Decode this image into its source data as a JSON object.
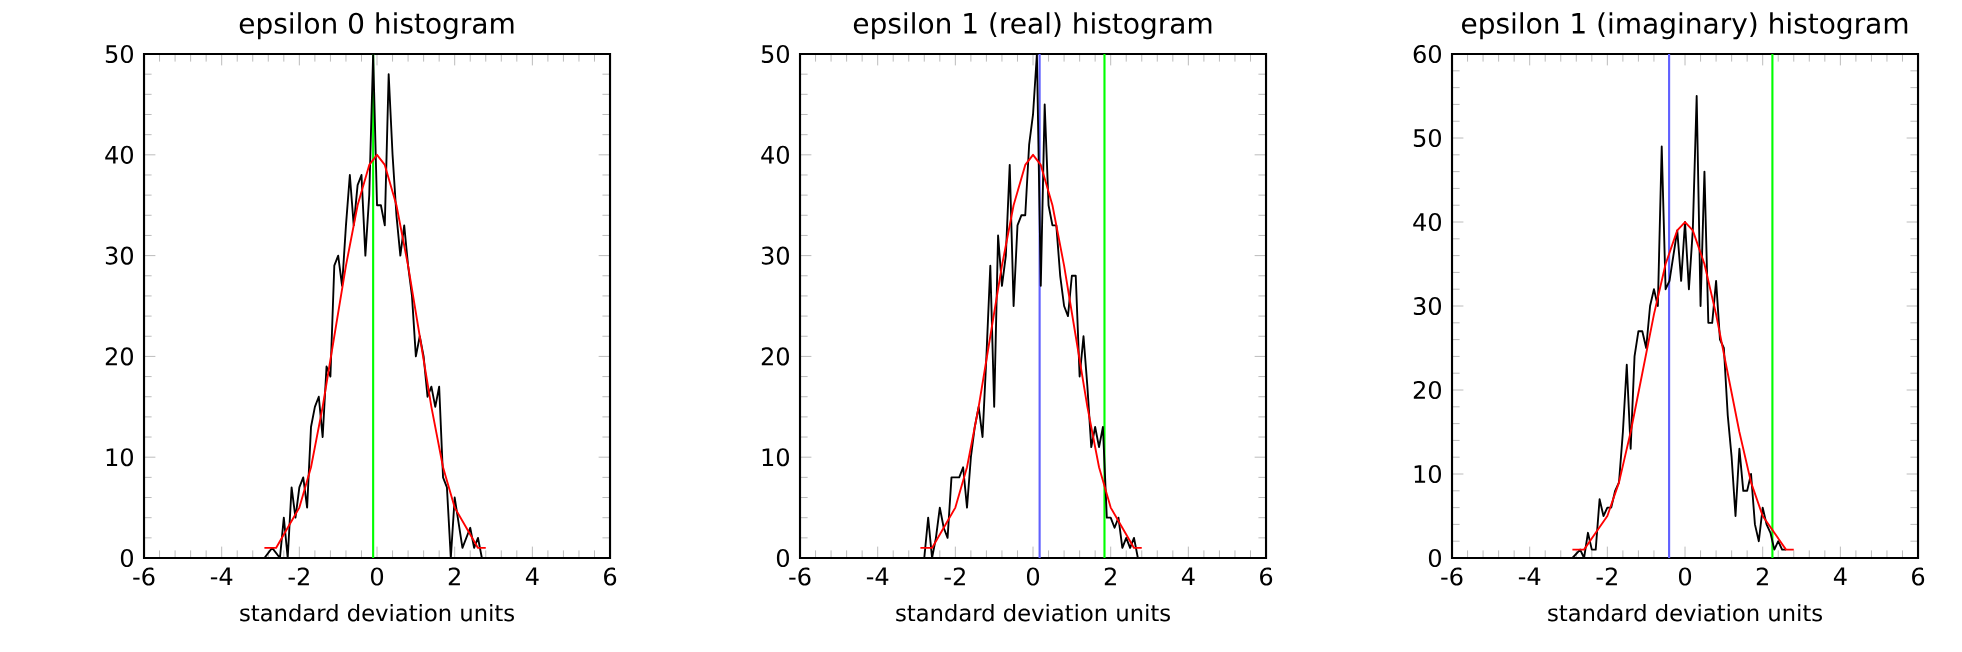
{
  "chart_data": [
    {
      "type": "line",
      "title": "epsilon 0 histogram",
      "xlabel": "standard deviation units",
      "xlim": [
        -6,
        6
      ],
      "ylim": [
        0,
        50
      ],
      "xticks": [
        -6,
        -4,
        -2,
        0,
        2,
        4,
        6
      ],
      "yticks": [
        0,
        10,
        20,
        30,
        40,
        50
      ],
      "series": [
        {
          "color": "#000000",
          "x": [
            -2.9,
            -2.7,
            -2.5,
            -2.4,
            -2.3,
            -2.2,
            -2.1,
            -2.0,
            -1.9,
            -1.8,
            -1.7,
            -1.6,
            -1.5,
            -1.4,
            -1.3,
            -1.2,
            -1.1,
            -1.0,
            -0.9,
            -0.8,
            -0.7,
            -0.6,
            -0.5,
            -0.4,
            -0.3,
            -0.2,
            -0.1,
            0.0,
            0.1,
            0.2,
            0.3,
            0.4,
            0.5,
            0.6,
            0.7,
            0.8,
            0.9,
            1.0,
            1.1,
            1.2,
            1.3,
            1.4,
            1.5,
            1.6,
            1.7,
            1.8,
            1.9,
            2.0,
            2.2,
            2.4,
            2.5,
            2.6,
            2.7
          ],
          "values": [
            0,
            1,
            0,
            4,
            0,
            7,
            4,
            7,
            8,
            5,
            13,
            15,
            16,
            12,
            19,
            18,
            29,
            30,
            27,
            33,
            38,
            33,
            37,
            38,
            30,
            36,
            50,
            35,
            35,
            33,
            48,
            40,
            34,
            30,
            33,
            29,
            26,
            20,
            22,
            20,
            16,
            17,
            15,
            17,
            8,
            7,
            0,
            6,
            1,
            3,
            1,
            2,
            0
          ]
        },
        {
          "color": "#ff0000",
          "x": [
            -2.9,
            -2.6,
            -2.3,
            -2.0,
            -1.7,
            -1.4,
            -1.1,
            -0.8,
            -0.5,
            -0.2,
            0.0,
            0.2,
            0.5,
            0.8,
            1.1,
            1.4,
            1.7,
            2.0,
            2.3,
            2.6,
            2.8
          ],
          "values": [
            1,
            1,
            3,
            5,
            9,
            15,
            22,
            29,
            35,
            39,
            40,
            39,
            35,
            29,
            22,
            15,
            9,
            5,
            3,
            1,
            1
          ]
        }
      ],
      "ref_lines": [
        {
          "axis": "x",
          "value": -0.1,
          "color": "#00ff00"
        }
      ]
    },
    {
      "type": "line",
      "title": "epsilon 1 (real) histogram",
      "xlabel": "standard deviation units",
      "xlim": [
        -6,
        6
      ],
      "ylim": [
        0,
        50
      ],
      "xticks": [
        -6,
        -4,
        -2,
        0,
        2,
        4,
        6
      ],
      "yticks": [
        0,
        10,
        20,
        30,
        40,
        50
      ],
      "series": [
        {
          "color": "#000000",
          "x": [
            -2.8,
            -2.7,
            -2.6,
            -2.5,
            -2.4,
            -2.3,
            -2.2,
            -2.1,
            -1.9,
            -1.8,
            -1.7,
            -1.6,
            -1.5,
            -1.4,
            -1.3,
            -1.2,
            -1.1,
            -1.0,
            -0.9,
            -0.8,
            -0.7,
            -0.6,
            -0.5,
            -0.4,
            -0.3,
            -0.2,
            -0.1,
            0.0,
            0.1,
            0.2,
            0.3,
            0.4,
            0.5,
            0.6,
            0.7,
            0.8,
            0.9,
            1.0,
            1.1,
            1.2,
            1.3,
            1.4,
            1.5,
            1.6,
            1.7,
            1.8,
            1.9,
            2.0,
            2.1,
            2.2,
            2.3,
            2.4,
            2.5,
            2.6,
            2.7
          ],
          "values": [
            0,
            4,
            0,
            2,
            5,
            3,
            2,
            8,
            8,
            9,
            5,
            10,
            13,
            15,
            12,
            20,
            29,
            15,
            32,
            27,
            30,
            39,
            25,
            33,
            34,
            34,
            41,
            44,
            50,
            27,
            45,
            35,
            33,
            33,
            28,
            25,
            24,
            28,
            28,
            18,
            22,
            17,
            11,
            13,
            11,
            13,
            4,
            4,
            3,
            4,
            1,
            2,
            1,
            2,
            0
          ]
        },
        {
          "color": "#ff0000",
          "x": [
            -2.9,
            -2.6,
            -2.3,
            -2.0,
            -1.7,
            -1.4,
            -1.1,
            -0.8,
            -0.5,
            -0.2,
            0.0,
            0.2,
            0.5,
            0.8,
            1.1,
            1.4,
            1.7,
            2.0,
            2.3,
            2.6,
            2.8
          ],
          "values": [
            1,
            1,
            3,
            5,
            9,
            15,
            22,
            29,
            35,
            39,
            40,
            39,
            35,
            29,
            22,
            15,
            9,
            5,
            3,
            1,
            1
          ]
        }
      ],
      "ref_lines": [
        {
          "axis": "x",
          "value": 0.17,
          "color": "#6060ff"
        },
        {
          "axis": "x",
          "value": 1.84,
          "color": "#00ff00"
        }
      ]
    },
    {
      "type": "line",
      "title": "epsilon 1 (imaginary) histogram",
      "xlabel": "standard deviation units",
      "xlim": [
        -6,
        6
      ],
      "ylim": [
        0,
        60
      ],
      "xticks": [
        -6,
        -4,
        -2,
        0,
        2,
        4,
        6
      ],
      "yticks": [
        0,
        10,
        20,
        30,
        40,
        50,
        60
      ],
      "series": [
        {
          "color": "#000000",
          "x": [
            -2.9,
            -2.7,
            -2.6,
            -2.5,
            -2.4,
            -2.3,
            -2.2,
            -2.1,
            -2.0,
            -1.9,
            -1.8,
            -1.7,
            -1.6,
            -1.5,
            -1.4,
            -1.3,
            -1.2,
            -1.1,
            -1.0,
            -0.9,
            -0.8,
            -0.7,
            -0.6,
            -0.5,
            -0.4,
            -0.3,
            -0.2,
            -0.1,
            0.0,
            0.1,
            0.2,
            0.3,
            0.4,
            0.5,
            0.6,
            0.7,
            0.8,
            0.9,
            1.0,
            1.1,
            1.2,
            1.3,
            1.4,
            1.5,
            1.6,
            1.7,
            1.8,
            1.9,
            2.0,
            2.1,
            2.2,
            2.3,
            2.4,
            2.5,
            2.6
          ],
          "values": [
            0,
            1,
            0,
            3,
            1,
            1,
            7,
            5,
            6,
            6,
            8,
            9,
            15,
            23,
            13,
            24,
            27,
            27,
            25,
            30,
            32,
            30,
            49,
            32,
            33,
            36,
            39,
            33,
            40,
            32,
            39,
            55,
            30,
            46,
            28,
            28,
            33,
            26,
            25,
            17,
            12,
            5,
            13,
            8,
            8,
            10,
            4,
            2,
            6,
            4,
            3,
            1,
            2,
            1,
            1
          ]
        },
        {
          "color": "#ff0000",
          "x": [
            -2.9,
            -2.6,
            -2.3,
            -2.0,
            -1.7,
            -1.4,
            -1.1,
            -0.8,
            -0.5,
            -0.2,
            0.0,
            0.2,
            0.5,
            0.8,
            1.1,
            1.4,
            1.7,
            2.0,
            2.3,
            2.6,
            2.8
          ],
          "values": [
            1,
            1,
            3,
            5,
            9,
            15,
            22,
            29,
            35,
            39,
            40,
            39,
            35,
            29,
            22,
            15,
            9,
            5,
            3,
            1,
            1
          ]
        }
      ],
      "ref_lines": [
        {
          "axis": "x",
          "value": -0.41,
          "color": "#6060ff"
        },
        {
          "axis": "x",
          "value": 2.25,
          "color": "#00ff00"
        }
      ]
    }
  ]
}
